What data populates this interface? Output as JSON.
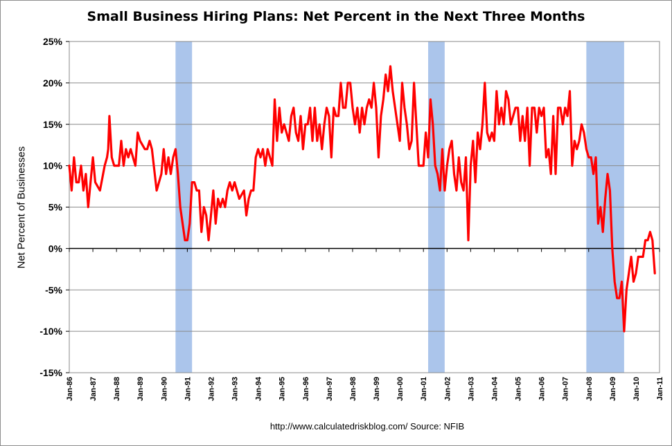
{
  "chart_data": {
    "type": "line",
    "title": "Small Business Hiring Plans: Net Percent in the Next Three Months",
    "ylabel": "Net Percent of Businesses",
    "xlabel": "",
    "source": "http://www.calculatedriskblog.com/  Source: NFIB",
    "ylim": [
      -15,
      25
    ],
    "yticks": [
      "25%",
      "20%",
      "15%",
      "10%",
      "5%",
      "0%",
      "-5%",
      "-10%",
      "-15%"
    ],
    "ytick_values": [
      25,
      20,
      15,
      10,
      5,
      0,
      -5,
      -10,
      -15
    ],
    "xlim": [
      1986.0,
      2011.0
    ],
    "xticks": [
      "Jan-86",
      "Jan-87",
      "Jan-88",
      "Jan-89",
      "Jan-90",
      "Jan-91",
      "Jan-92",
      "Jan-93",
      "Jan-94",
      "Jan-95",
      "Jan-96",
      "Jan-97",
      "Jan-98",
      "Jan-99",
      "Jan-00",
      "Jan-01",
      "Jan-02",
      "Jan-03",
      "Jan-04",
      "Jan-05",
      "Jan-06",
      "Jan-07",
      "Jan-08",
      "Jan-09",
      "Jan-10",
      "Jan-11"
    ],
    "grid": true,
    "line_color": "#ff0000",
    "recession_color": "#a6c2ea",
    "recessions": [
      [
        1990.5,
        1991.2
      ],
      [
        2001.2,
        2001.9
      ],
      [
        2007.9,
        2009.5
      ]
    ],
    "series": [
      {
        "x": [
          1986.0,
          1986.1,
          1986.2,
          1986.3,
          1986.4,
          1986.5,
          1986.6,
          1986.7,
          1986.8,
          1986.9,
          1987.0,
          1987.1,
          1987.3,
          1987.5,
          1987.6,
          1987.65,
          1987.7,
          1987.8,
          1987.9,
          1988.0,
          1988.1,
          1988.2,
          1988.3,
          1988.4,
          1988.5,
          1988.6,
          1988.8,
          1988.9,
          1989.0,
          1989.2,
          1989.3,
          1989.4,
          1989.5,
          1989.7,
          1989.8,
          1989.9,
          1990.0,
          1990.1,
          1990.2,
          1990.3,
          1990.4,
          1990.5,
          1990.6,
          1990.7,
          1990.8,
          1990.9,
          1991.0,
          1991.1,
          1991.2,
          1991.3,
          1991.4,
          1991.5,
          1991.6,
          1991.7,
          1991.8,
          1991.9,
          1992.0,
          1992.1,
          1992.2,
          1992.3,
          1992.4,
          1992.5,
          1992.6,
          1992.7,
          1992.8,
          1992.9,
          1993.0,
          1993.2,
          1993.4,
          1993.5,
          1993.6,
          1993.7,
          1993.8,
          1993.9,
          1994.0,
          1994.1,
          1994.2,
          1994.3,
          1994.4,
          1994.5,
          1994.6,
          1994.7,
          1994.8,
          1994.9,
          1995.0,
          1995.1,
          1995.2,
          1995.3,
          1995.4,
          1995.5,
          1995.6,
          1995.7,
          1995.8,
          1995.9,
          1996.0,
          1996.1,
          1996.2,
          1996.3,
          1996.4,
          1996.5,
          1996.6,
          1996.7,
          1996.8,
          1996.9,
          1997.0,
          1997.1,
          1997.2,
          1997.3,
          1997.4,
          1997.5,
          1997.6,
          1997.7,
          1997.8,
          1997.9,
          1998.0,
          1998.1,
          1998.2,
          1998.3,
          1998.4,
          1998.5,
          1998.6,
          1998.7,
          1998.8,
          1998.9,
          1999.0,
          1999.1,
          1999.2,
          1999.3,
          1999.4,
          1999.5,
          1999.6,
          1999.7,
          1999.8,
          1999.9,
          2000.0,
          2000.1,
          2000.2,
          2000.3,
          2000.4,
          2000.5,
          2000.6,
          2000.7,
          2000.8,
          2000.9,
          2001.0,
          2001.1,
          2001.2,
          2001.3,
          2001.4,
          2001.5,
          2001.6,
          2001.7,
          2001.8,
          2001.9,
          2002.0,
          2002.1,
          2002.2,
          2002.3,
          2002.4,
          2002.5,
          2002.6,
          2002.7,
          2002.8,
          2002.9,
          2003.0,
          2003.1,
          2003.2,
          2003.3,
          2003.4,
          2003.5,
          2003.6,
          2003.7,
          2003.8,
          2003.9,
          2004.0,
          2004.1,
          2004.2,
          2004.3,
          2004.4,
          2004.5,
          2004.6,
          2004.7,
          2004.8,
          2004.9,
          2005.0,
          2005.1,
          2005.2,
          2005.3,
          2005.4,
          2005.5,
          2005.6,
          2005.7,
          2005.8,
          2005.9,
          2006.0,
          2006.1,
          2006.2,
          2006.3,
          2006.4,
          2006.5,
          2006.6,
          2006.7,
          2006.8,
          2006.9,
          2007.0,
          2007.1,
          2007.2,
          2007.3,
          2007.4,
          2007.5,
          2007.6,
          2007.7,
          2007.8,
          2007.9,
          2008.0,
          2008.1,
          2008.2,
          2008.3,
          2008.4,
          2008.5,
          2008.6,
          2008.7,
          2008.8,
          2008.9,
          2009.0,
          2009.1,
          2009.2,
          2009.3,
          2009.4,
          2009.5,
          2009.6,
          2009.7,
          2009.8,
          2009.9,
          2010.0,
          2010.1,
          2010.2,
          2010.3,
          2010.4,
          2010.5,
          2010.6,
          2010.7,
          2010.8
        ],
        "y": [
          10,
          7,
          11,
          8,
          8,
          10,
          7,
          9,
          5,
          8,
          11,
          8,
          7,
          10,
          11,
          12,
          16,
          11,
          10,
          10,
          10,
          13,
          10,
          12,
          11,
          12,
          10,
          14,
          13,
          12,
          12,
          13,
          12,
          7,
          8,
          9,
          12,
          9,
          11,
          9,
          11,
          12,
          9,
          5,
          3,
          1,
          1,
          3,
          8,
          8,
          7,
          7,
          2,
          5,
          4,
          1,
          4,
          7,
          3,
          6,
          5,
          6,
          5,
          7,
          8,
          7,
          8,
          6,
          7,
          4,
          6,
          7,
          7,
          11,
          12,
          11,
          12,
          10,
          12,
          11,
          10,
          18,
          13,
          17,
          14,
          15,
          14,
          13,
          16,
          17,
          14,
          13,
          16,
          12,
          15,
          15,
          17,
          13,
          17,
          13,
          15,
          12,
          15,
          17,
          16,
          11,
          17,
          16,
          16,
          20,
          17,
          17,
          20,
          20,
          17,
          15,
          17,
          14,
          17,
          15,
          17,
          18,
          17,
          20,
          17,
          11,
          16,
          18,
          21,
          19,
          22,
          19,
          17,
          15,
          13,
          20,
          17,
          15,
          12,
          13,
          20,
          15,
          10,
          10,
          10,
          14,
          11,
          18,
          15,
          10,
          9,
          7,
          12,
          7,
          10,
          12,
          13,
          9,
          7,
          11,
          8,
          7,
          11,
          1,
          10,
          13,
          8,
          14,
          12,
          15,
          20,
          14,
          13,
          14,
          13,
          19,
          15,
          17,
          15,
          19,
          18,
          15,
          16,
          17,
          17,
          13,
          16,
          13,
          17,
          10,
          17,
          17,
          14,
          17,
          16,
          17,
          11,
          12,
          9,
          16,
          9,
          17,
          17,
          15,
          17,
          16,
          19,
          10,
          13,
          12,
          13,
          15,
          14,
          12,
          11,
          11,
          9,
          11,
          3,
          5,
          2,
          6,
          9,
          7,
          0,
          -4,
          -6,
          -6,
          -4,
          -10,
          -5,
          -3,
          -1,
          -4,
          -3,
          -1,
          -1,
          -1,
          1,
          1,
          2,
          1,
          -3
        ]
      }
    ]
  }
}
